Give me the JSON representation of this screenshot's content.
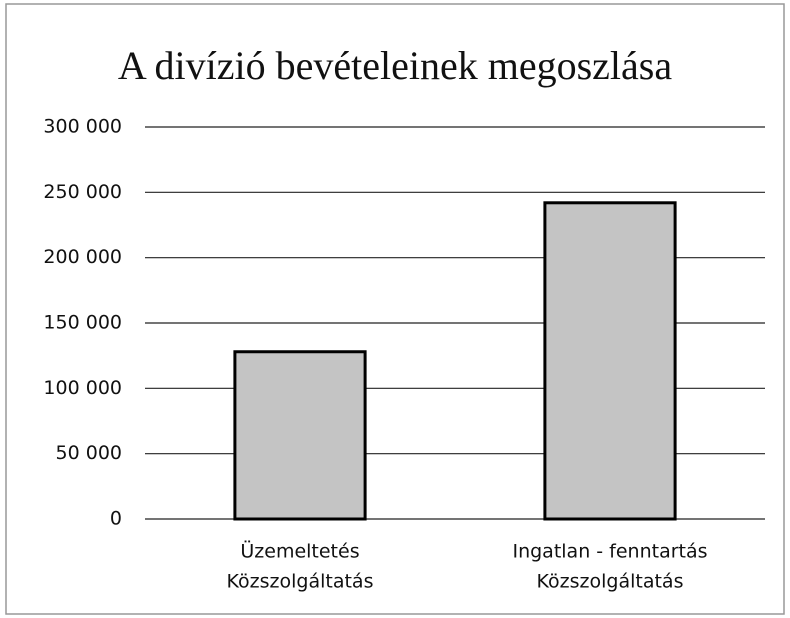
{
  "chart_data": {
    "type": "bar",
    "title": "A divízió bevételeinek megoszlása",
    "categories": [
      [
        "Üzemeltetés",
        "Közszolgáltatás"
      ],
      [
        "Ingatlan - fenntartás",
        "Közszolgáltatás"
      ]
    ],
    "values": [
      128000,
      242000
    ],
    "color": "#c4c4c4",
    "ylim": [
      0,
      300000
    ],
    "yticks": [
      0,
      {
        "value": 50000,
        "label": "50 000"
      },
      {
        "value": 100000,
        "label": "100 000"
      },
      {
        "value": 150000,
        "label": "150 000"
      },
      {
        "value": 200000,
        "label": "200 000"
      },
      {
        "value": 250000,
        "label": "250 000"
      },
      {
        "value": 300000,
        "label": "300 000"
      }
    ],
    "grid": true
  }
}
